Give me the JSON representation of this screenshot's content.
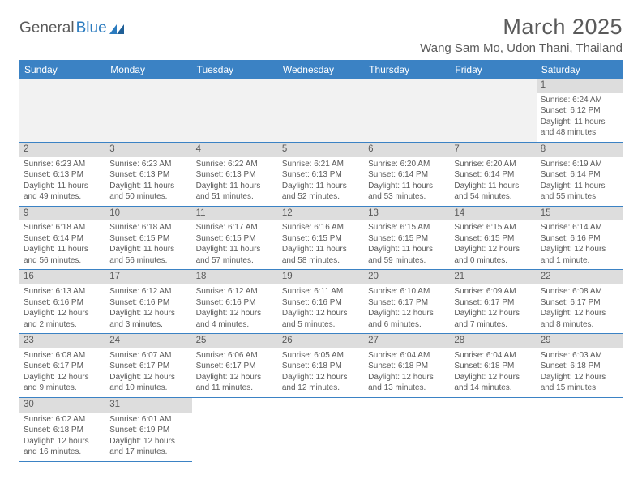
{
  "logo": {
    "text1": "General",
    "text2": "Blue"
  },
  "header": {
    "month_title": "March 2025",
    "location": "Wang Sam Mo, Udon Thani, Thailand"
  },
  "colors": {
    "header_bg": "#3b82c4",
    "header_fg": "#ffffff",
    "daynum_bg": "#dddddd",
    "text": "#5a5a5a",
    "rule": "#3b82c4",
    "empty_bg": "#f2f2f2"
  },
  "weekdays": [
    "Sunday",
    "Monday",
    "Tuesday",
    "Wednesday",
    "Thursday",
    "Friday",
    "Saturday"
  ],
  "weeks": [
    [
      null,
      null,
      null,
      null,
      null,
      null,
      {
        "n": "1",
        "sr": "6:24 AM",
        "ss": "6:12 PM",
        "dl": "11 hours and 48 minutes."
      }
    ],
    [
      {
        "n": "2",
        "sr": "6:23 AM",
        "ss": "6:13 PM",
        "dl": "11 hours and 49 minutes."
      },
      {
        "n": "3",
        "sr": "6:23 AM",
        "ss": "6:13 PM",
        "dl": "11 hours and 50 minutes."
      },
      {
        "n": "4",
        "sr": "6:22 AM",
        "ss": "6:13 PM",
        "dl": "11 hours and 51 minutes."
      },
      {
        "n": "5",
        "sr": "6:21 AM",
        "ss": "6:13 PM",
        "dl": "11 hours and 52 minutes."
      },
      {
        "n": "6",
        "sr": "6:20 AM",
        "ss": "6:14 PM",
        "dl": "11 hours and 53 minutes."
      },
      {
        "n": "7",
        "sr": "6:20 AM",
        "ss": "6:14 PM",
        "dl": "11 hours and 54 minutes."
      },
      {
        "n": "8",
        "sr": "6:19 AM",
        "ss": "6:14 PM",
        "dl": "11 hours and 55 minutes."
      }
    ],
    [
      {
        "n": "9",
        "sr": "6:18 AM",
        "ss": "6:14 PM",
        "dl": "11 hours and 56 minutes."
      },
      {
        "n": "10",
        "sr": "6:18 AM",
        "ss": "6:15 PM",
        "dl": "11 hours and 56 minutes."
      },
      {
        "n": "11",
        "sr": "6:17 AM",
        "ss": "6:15 PM",
        "dl": "11 hours and 57 minutes."
      },
      {
        "n": "12",
        "sr": "6:16 AM",
        "ss": "6:15 PM",
        "dl": "11 hours and 58 minutes."
      },
      {
        "n": "13",
        "sr": "6:15 AM",
        "ss": "6:15 PM",
        "dl": "11 hours and 59 minutes."
      },
      {
        "n": "14",
        "sr": "6:15 AM",
        "ss": "6:15 PM",
        "dl": "12 hours and 0 minutes."
      },
      {
        "n": "15",
        "sr": "6:14 AM",
        "ss": "6:16 PM",
        "dl": "12 hours and 1 minute."
      }
    ],
    [
      {
        "n": "16",
        "sr": "6:13 AM",
        "ss": "6:16 PM",
        "dl": "12 hours and 2 minutes."
      },
      {
        "n": "17",
        "sr": "6:12 AM",
        "ss": "6:16 PM",
        "dl": "12 hours and 3 minutes."
      },
      {
        "n": "18",
        "sr": "6:12 AM",
        "ss": "6:16 PM",
        "dl": "12 hours and 4 minutes."
      },
      {
        "n": "19",
        "sr": "6:11 AM",
        "ss": "6:16 PM",
        "dl": "12 hours and 5 minutes."
      },
      {
        "n": "20",
        "sr": "6:10 AM",
        "ss": "6:17 PM",
        "dl": "12 hours and 6 minutes."
      },
      {
        "n": "21",
        "sr": "6:09 AM",
        "ss": "6:17 PM",
        "dl": "12 hours and 7 minutes."
      },
      {
        "n": "22",
        "sr": "6:08 AM",
        "ss": "6:17 PM",
        "dl": "12 hours and 8 minutes."
      }
    ],
    [
      {
        "n": "23",
        "sr": "6:08 AM",
        "ss": "6:17 PM",
        "dl": "12 hours and 9 minutes."
      },
      {
        "n": "24",
        "sr": "6:07 AM",
        "ss": "6:17 PM",
        "dl": "12 hours and 10 minutes."
      },
      {
        "n": "25",
        "sr": "6:06 AM",
        "ss": "6:17 PM",
        "dl": "12 hours and 11 minutes."
      },
      {
        "n": "26",
        "sr": "6:05 AM",
        "ss": "6:18 PM",
        "dl": "12 hours and 12 minutes."
      },
      {
        "n": "27",
        "sr": "6:04 AM",
        "ss": "6:18 PM",
        "dl": "12 hours and 13 minutes."
      },
      {
        "n": "28",
        "sr": "6:04 AM",
        "ss": "6:18 PM",
        "dl": "12 hours and 14 minutes."
      },
      {
        "n": "29",
        "sr": "6:03 AM",
        "ss": "6:18 PM",
        "dl": "12 hours and 15 minutes."
      }
    ],
    [
      {
        "n": "30",
        "sr": "6:02 AM",
        "ss": "6:18 PM",
        "dl": "12 hours and 16 minutes."
      },
      {
        "n": "31",
        "sr": "6:01 AM",
        "ss": "6:19 PM",
        "dl": "12 hours and 17 minutes."
      },
      null,
      null,
      null,
      null,
      null
    ]
  ],
  "labels": {
    "sunrise": "Sunrise:",
    "sunset": "Sunset:",
    "daylight": "Daylight:"
  }
}
